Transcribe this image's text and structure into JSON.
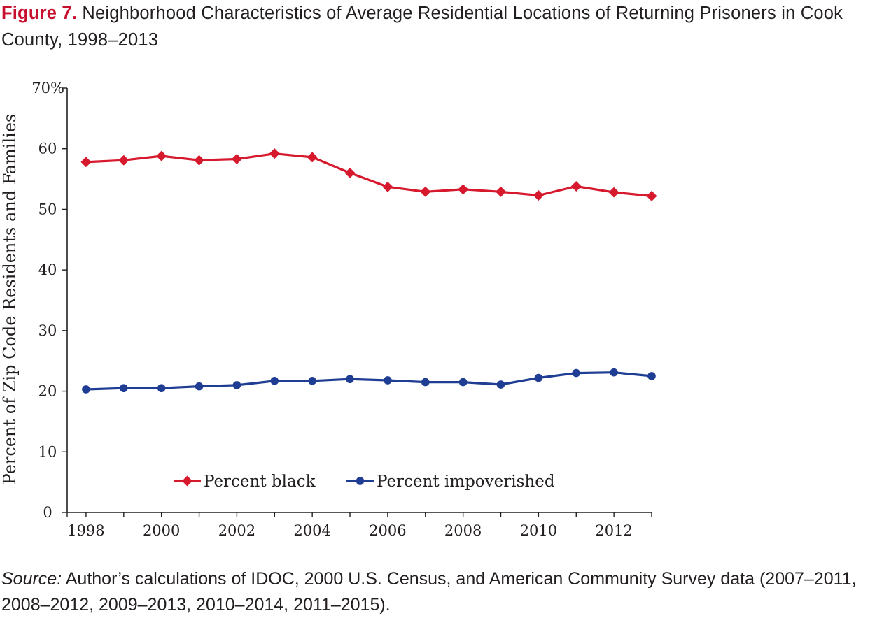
{
  "figure": {
    "label": "Figure 7.",
    "title": "Neighborhood Characteristics of Average Residential Locations of Returning Prisoners in Cook County, 1998–2013"
  },
  "source": {
    "label": "Source:",
    "text": "Author’s calculations of IDOC, 2000 U.S. Census, and American Community Survey data (2007–2011, 2008–2012, 2009–2013, 2010–2014, 2011–2015)."
  },
  "chart_data": {
    "type": "line",
    "title": "",
    "xlabel": "",
    "ylabel": "Percent of Zip Code Residents and Families",
    "x": [
      1998,
      1999,
      2000,
      2001,
      2002,
      2003,
      2004,
      2005,
      2006,
      2007,
      2008,
      2009,
      2010,
      2011,
      2012,
      2013
    ],
    "xticks": [
      "1998",
      "2000",
      "2002",
      "2004",
      "2006",
      "2008",
      "2010",
      "2012"
    ],
    "xtick_values": [
      1998,
      2000,
      2002,
      2004,
      2006,
      2008,
      2010,
      2012
    ],
    "xlim": [
      1997.5,
      2013
    ],
    "ylim": [
      0,
      70
    ],
    "yticks": [
      "0",
      "10",
      "20",
      "30",
      "40",
      "50",
      "60",
      "70%"
    ],
    "ytick_values": [
      0,
      10,
      20,
      30,
      40,
      50,
      60,
      70
    ],
    "grid": false,
    "legend_position": "bottom-center inside plot",
    "series": [
      {
        "name": "Percent black",
        "color": "#d7192d",
        "marker": "diamond",
        "values": [
          57.8,
          58.1,
          58.8,
          58.1,
          58.3,
          59.2,
          58.6,
          56.0,
          53.7,
          52.9,
          53.3,
          52.9,
          52.3,
          53.8,
          52.8,
          52.2
        ]
      },
      {
        "name": "Percent impoverished",
        "color": "#1f3e93",
        "marker": "circle",
        "values": [
          20.3,
          20.5,
          20.5,
          20.8,
          21.0,
          21.7,
          21.7,
          22.0,
          21.8,
          21.5,
          21.5,
          21.1,
          22.2,
          23.0,
          23.1,
          22.5
        ]
      }
    ]
  }
}
